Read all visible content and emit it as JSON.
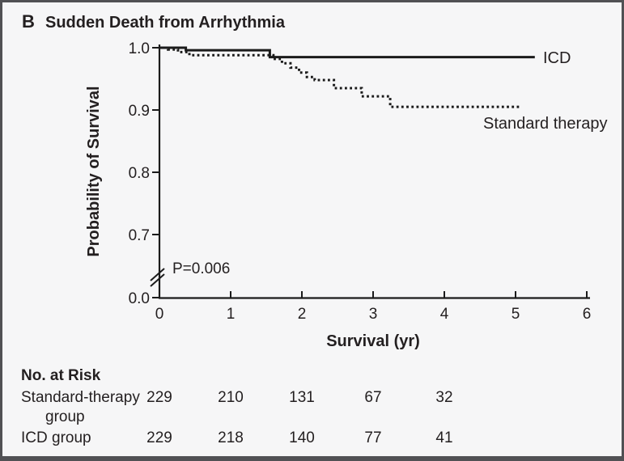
{
  "figure": {
    "panel_letter": "B",
    "panel_title": "Sudden Death from Arrhythmia"
  },
  "chart_data": {
    "type": "line",
    "subtype": "kaplan-meier-step",
    "title": "Sudden Death from Arrhythmia",
    "xlabel": "Survival (yr)",
    "ylabel": "Probability of Survival",
    "xlim": [
      0,
      6
    ],
    "x_ticks": [
      0,
      1,
      2,
      3,
      4,
      5,
      6
    ],
    "y_tick_labels": [
      "1.0",
      "0.9",
      "0.8",
      "0.7",
      "0.0"
    ],
    "y_axis_break": true,
    "grid": false,
    "legend_position": "right-of-curves",
    "p_value_label": "P=0.006",
    "series": [
      {
        "name": "ICD",
        "style": "solid",
        "points": [
          [
            0,
            1.0
          ],
          [
            0.37,
            0.996
          ],
          [
            1.55,
            0.985
          ]
        ],
        "x_end": 5.27
      },
      {
        "name": "Standard therapy",
        "style": "dotted",
        "points": [
          [
            0,
            1.0
          ],
          [
            0.12,
            0.997
          ],
          [
            0.26,
            0.993
          ],
          [
            0.42,
            0.988
          ],
          [
            1.6,
            0.982
          ],
          [
            1.72,
            0.975
          ],
          [
            1.84,
            0.968
          ],
          [
            1.96,
            0.96
          ],
          [
            2.07,
            0.953
          ],
          [
            2.18,
            0.948
          ],
          [
            2.45,
            0.935
          ],
          [
            2.84,
            0.922
          ],
          [
            3.24,
            0.905
          ]
        ],
        "x_end": 5.07
      }
    ]
  },
  "risk_table": {
    "heading": "No. at Risk",
    "rows": [
      {
        "label_line1": "Standard-therapy",
        "label_line2": "group",
        "values": [
          "229",
          "210",
          "131",
          "67",
          "32"
        ]
      },
      {
        "label_line1": "ICD group",
        "label_line2": "",
        "values": [
          "229",
          "218",
          "140",
          "77",
          "41"
        ]
      }
    ]
  },
  "colors": {
    "background": "#f6f6f7",
    "border": "#515154",
    "line": "#1b1b1b",
    "text": "#231f20"
  }
}
